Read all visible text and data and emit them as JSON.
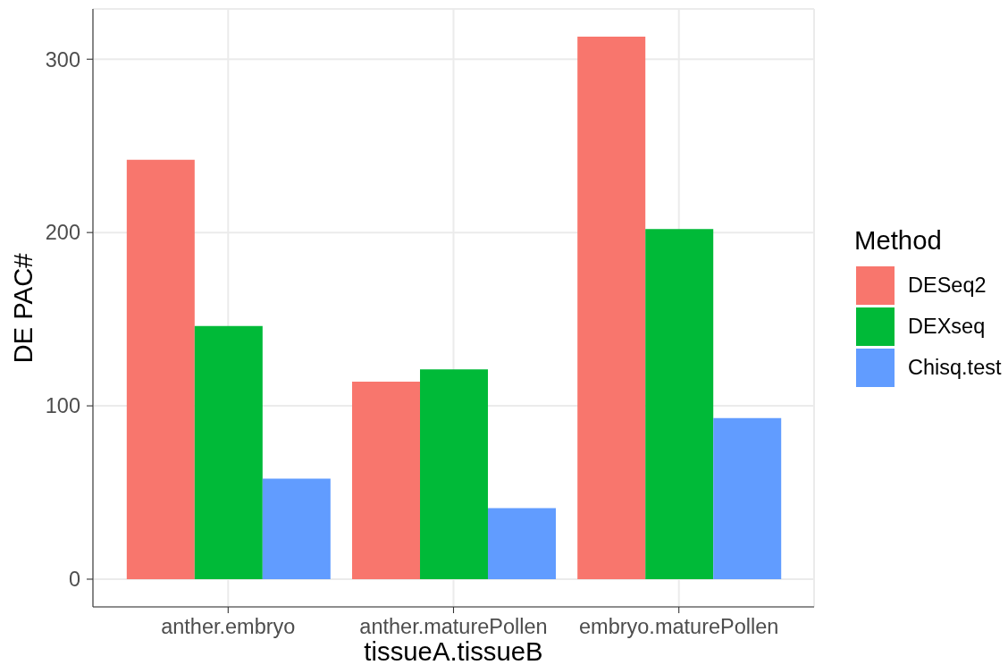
{
  "chart_data": {
    "type": "bar",
    "xlabel": "tissueA.tissueB",
    "ylabel": "DE PAC#",
    "legend_title": "Method",
    "categories": [
      "anther.embryo",
      "anther.maturePollen",
      "embryo.maturePollen"
    ],
    "series": [
      {
        "name": "DESeq2",
        "color": "#f8766d",
        "values": [
          242,
          114,
          313
        ]
      },
      {
        "name": "DEXseq",
        "color": "#00ba38",
        "values": [
          146,
          121,
          202
        ]
      },
      {
        "name": "Chisq.test",
        "color": "#619cff",
        "values": [
          58,
          41,
          93
        ]
      }
    ],
    "ylim": [
      -16,
      329
    ],
    "yticks": [
      0,
      100,
      200,
      300
    ],
    "grid": true,
    "legend": "right"
  }
}
